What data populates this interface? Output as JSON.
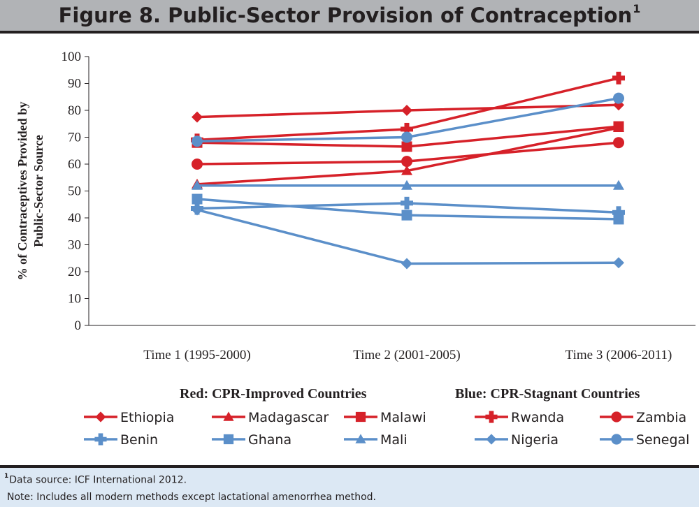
{
  "header": {
    "title": "Figure 8. Public-Sector Provision of Contraception",
    "title_sup": "1"
  },
  "footer": {
    "source_sup": "1",
    "source": "Data source: ICF International 2012.",
    "note": "Note: Includes all modern methods except lactational amenorrhea method."
  },
  "colors": {
    "red": "#d62129",
    "blue": "#5b8fc9",
    "header_bg": "#b1b3b6",
    "footer_bg": "#dce8f4"
  },
  "chart_data": {
    "type": "line",
    "ylabel": "% of Contraceptives Provided by Public-Sector Source",
    "ylabel_lines": [
      "% of Contraceptives Provided by",
      "Public-Sector Source"
    ],
    "ylim": [
      0,
      100
    ],
    "yticks": [
      0,
      10,
      20,
      30,
      40,
      50,
      60,
      70,
      80,
      90,
      100
    ],
    "categories": [
      "Time 1 (1995-2000)",
      "Time 2 (2001-2005)",
      "Time 3 (2006-2011)"
    ],
    "grid": false,
    "legend": {
      "position": "bottom",
      "red_heading": "Red: CPR-Improved Countries",
      "blue_heading": "Blue: CPR-Stagnant Countries"
    },
    "series": [
      {
        "name": "Ethiopia",
        "color": "red",
        "marker": "diamond",
        "values": [
          77.5,
          80,
          82
        ]
      },
      {
        "name": "Madagascar",
        "color": "red",
        "marker": "triangle",
        "values": [
          52.5,
          57.5,
          73.5
        ]
      },
      {
        "name": "Malawi",
        "color": "red",
        "marker": "square",
        "values": [
          68,
          66.5,
          74
        ]
      },
      {
        "name": "Rwanda",
        "color": "red",
        "marker": "plus",
        "values": [
          69,
          73,
          92
        ]
      },
      {
        "name": "Zambia",
        "color": "red",
        "marker": "circle",
        "values": [
          60,
          61,
          68
        ]
      },
      {
        "name": "Benin",
        "color": "blue",
        "marker": "plus",
        "values": [
          43.5,
          45.5,
          42
        ]
      },
      {
        "name": "Ghana",
        "color": "blue",
        "marker": "square",
        "values": [
          47,
          41,
          39.5
        ]
      },
      {
        "name": "Mali",
        "color": "blue",
        "marker": "triangle",
        "values": [
          52,
          52,
          52
        ]
      },
      {
        "name": "Nigeria",
        "color": "blue",
        "marker": "diamond",
        "values": [
          43,
          23,
          23.3
        ]
      },
      {
        "name": "Senegal",
        "color": "blue",
        "marker": "circle",
        "values": [
          68.5,
          70,
          84.5
        ]
      }
    ]
  }
}
